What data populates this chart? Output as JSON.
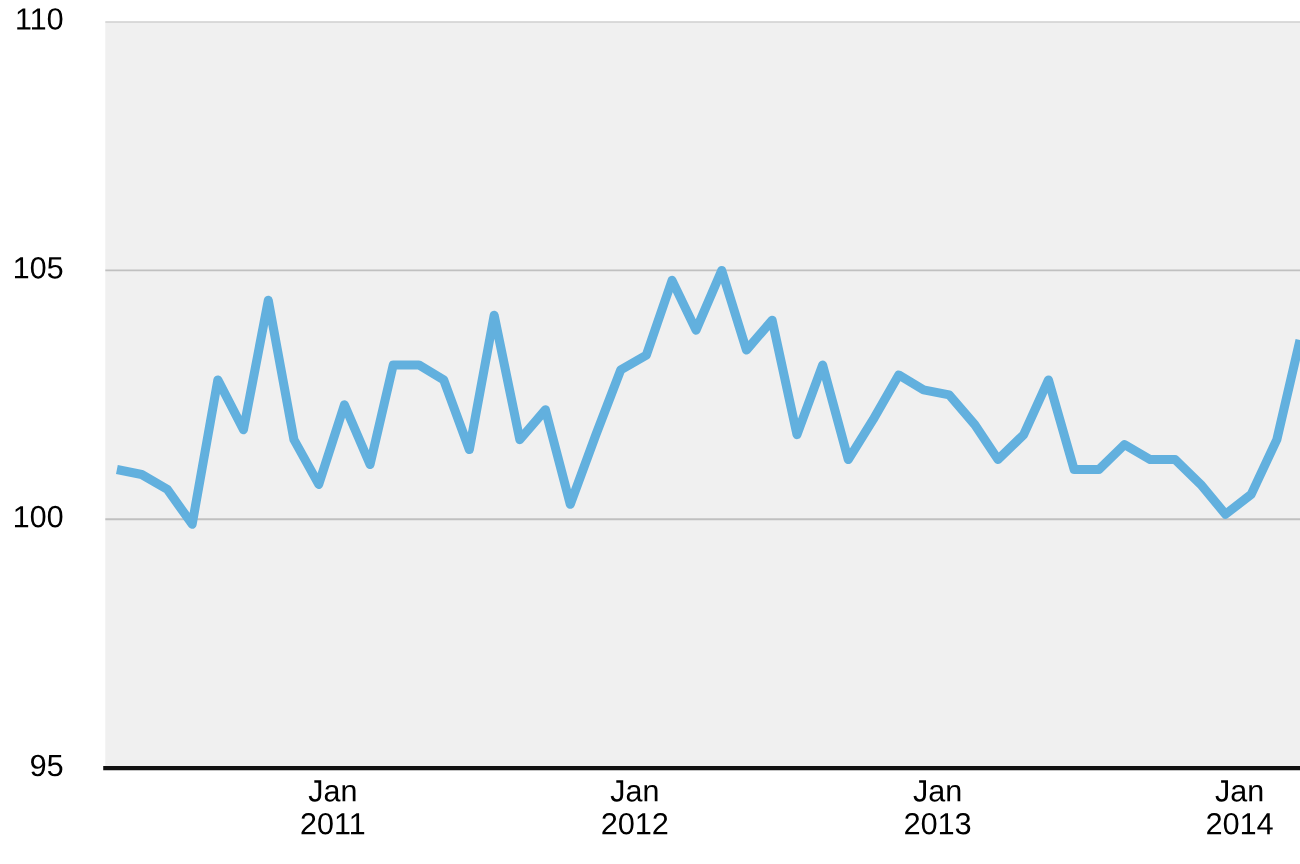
{
  "chart_data": {
    "type": "line",
    "x": [
      "2010-04-15",
      "2010-05-15",
      "2010-06-15",
      "2010-07-15",
      "2010-08-15",
      "2010-09-15",
      "2010-10-15",
      "2010-11-15",
      "2010-12-15",
      "2011-01-15",
      "2011-02-15",
      "2011-03-15",
      "2011-04-15",
      "2011-05-15",
      "2011-06-15",
      "2011-07-15",
      "2011-08-15",
      "2011-09-15",
      "2011-10-15",
      "2011-11-15",
      "2011-12-15",
      "2012-01-15",
      "2012-02-15",
      "2012-03-15",
      "2012-04-15",
      "2012-05-15",
      "2012-06-15",
      "2012-07-15",
      "2012-08-15",
      "2012-09-15",
      "2012-10-15",
      "2012-11-15",
      "2012-12-15",
      "2013-01-15",
      "2013-02-15",
      "2013-03-15",
      "2013-04-15",
      "2013-05-15",
      "2013-06-15",
      "2013-07-15",
      "2013-08-15",
      "2013-09-15",
      "2013-10-15",
      "2013-11-15",
      "2013-12-15",
      "2014-01-15",
      "2014-02-15",
      "2014-03-15"
    ],
    "series": [
      {
        "color": "#62b0de",
        "values": [
          101.0,
          100.9,
          100.6,
          99.9,
          102.8,
          101.8,
          104.4,
          101.6,
          100.7,
          102.3,
          101.1,
          103.1,
          103.1,
          102.8,
          101.4,
          104.1,
          101.6,
          102.2,
          100.3,
          101.7,
          103.0,
          103.3,
          104.8,
          103.8,
          105.0,
          103.4,
          104.0,
          101.7,
          103.1,
          101.2,
          102.0,
          102.9,
          102.6,
          102.5,
          101.9,
          101.2,
          101.7,
          102.8,
          101.0,
          101.0,
          101.5,
          101.2,
          101.2,
          100.7,
          100.1,
          100.5,
          101.6,
          103.6
        ]
      }
    ],
    "xlim": [
      "2010-04-01",
      "2014-03-15"
    ],
    "xticks": [
      {
        "value": "2011-01-01",
        "label": "Jan\n2011"
      },
      {
        "value": "2012-01-01",
        "label": "Jan\n2012"
      },
      {
        "value": "2013-01-01",
        "label": "Jan\n2013"
      },
      {
        "value": "2014-01-01",
        "label": "Jan\n2014"
      }
    ],
    "ylim": [
      95,
      110
    ],
    "yticks": [
      95,
      100,
      105,
      110
    ],
    "grid": "y",
    "marker": "none",
    "line_style": "solid"
  }
}
